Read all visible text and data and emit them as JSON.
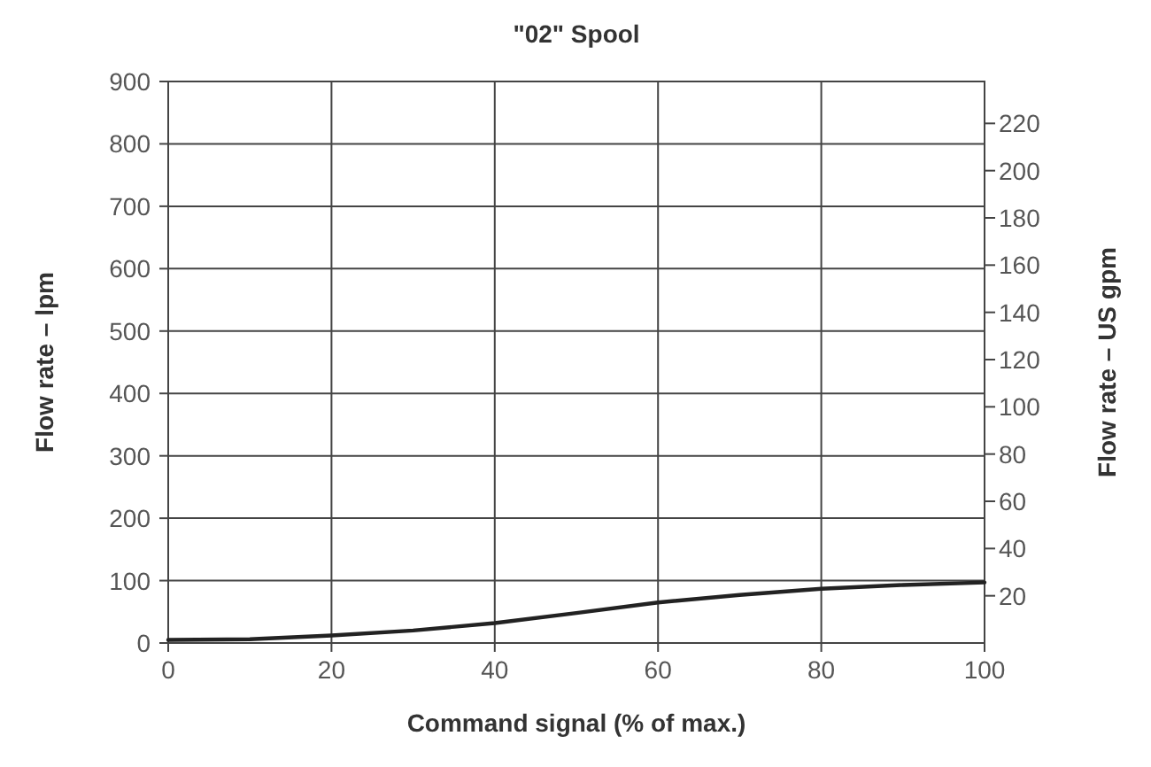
{
  "chart_data": {
    "type": "line",
    "title": "\"02\" Spool",
    "xlabel": "Command signal (% of max.)",
    "ylabel": "Flow rate – lpm",
    "y2label": "Flow rate – US gpm",
    "x": [
      0,
      10,
      20,
      30,
      40,
      50,
      60,
      70,
      80,
      90,
      100
    ],
    "series": [
      {
        "color": "#222222",
        "values": [
          5,
          6,
          12,
          20,
          32,
          48,
          65,
          77,
          87,
          93,
          97
        ]
      }
    ],
    "xlim": [
      0,
      100
    ],
    "xticks": [
      0,
      20,
      40,
      60,
      80,
      100
    ],
    "ylim": [
      0,
      900
    ],
    "yticks": [
      0,
      100,
      200,
      300,
      400,
      500,
      600,
      700,
      800,
      900
    ],
    "y2lim": [
      0,
      237.75
    ],
    "y2ticks": [
      20,
      40,
      60,
      80,
      100,
      120,
      140,
      160,
      180,
      200,
      220
    ],
    "grid": true,
    "marker": "none",
    "line_style": "solid"
  }
}
